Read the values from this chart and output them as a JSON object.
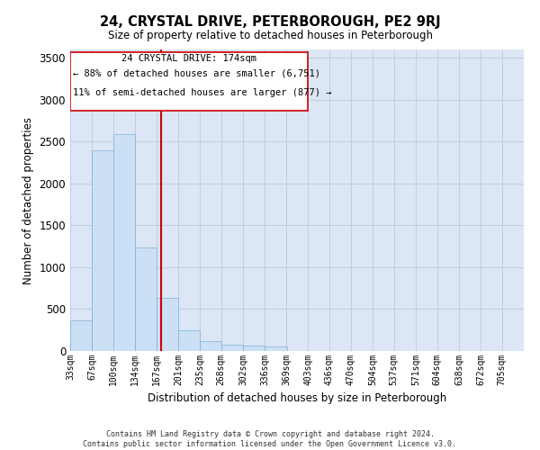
{
  "title": "24, CRYSTAL DRIVE, PETERBOROUGH, PE2 9RJ",
  "subtitle": "Size of property relative to detached houses in Peterborough",
  "xlabel": "Distribution of detached houses by size in Peterborough",
  "ylabel": "Number of detached properties",
  "footer_line1": "Contains HM Land Registry data © Crown copyright and database right 2024.",
  "footer_line2": "Contains public sector information licensed under the Open Government Licence v3.0.",
  "annotation_line1": "24 CRYSTAL DRIVE: 174sqm",
  "annotation_line2": "← 88% of detached houses are smaller (6,751)",
  "annotation_line3": "11% of semi-detached houses are larger (877) →",
  "property_size_idx": 4,
  "bar_color": "#cce0f5",
  "bar_edge_color": "#7ab0d4",
  "vline_color": "#cc0000",
  "ann_box_color": "#cc0000",
  "background_color": "#dce6f5",
  "grid_color": "#b8c4d8",
  "bin_edges": [
    33,
    67,
    100,
    134,
    167,
    201,
    235,
    268,
    302,
    336,
    369,
    403,
    436,
    470,
    504,
    537,
    571,
    604,
    638,
    672,
    705
  ],
  "bin_width": 34,
  "values": [
    370,
    2400,
    2590,
    1240,
    630,
    250,
    120,
    70,
    60,
    50,
    0,
    0,
    0,
    0,
    0,
    0,
    0,
    0,
    0,
    0,
    0
  ],
  "ylim": [
    0,
    3600
  ],
  "yticks": [
    0,
    500,
    1000,
    1500,
    2000,
    2500,
    3000,
    3500
  ],
  "figwidth": 6.0,
  "figheight": 5.0,
  "dpi": 100
}
